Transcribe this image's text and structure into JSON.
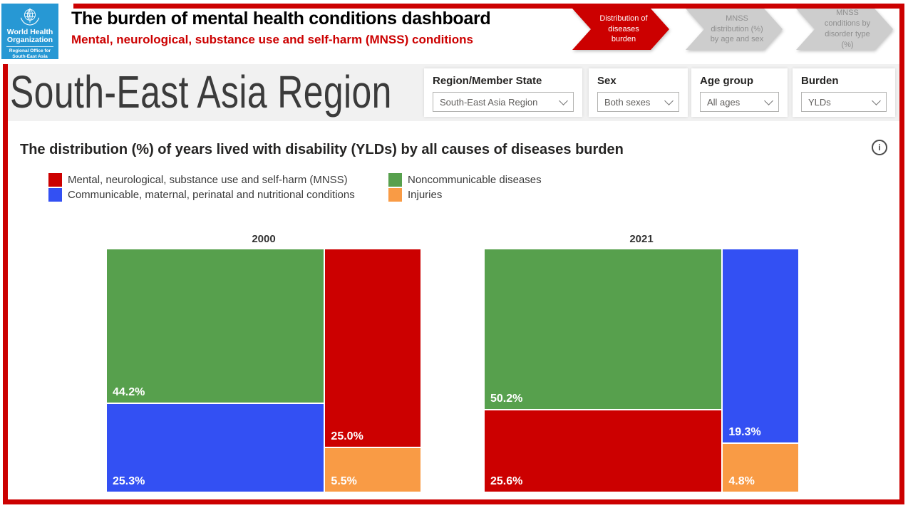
{
  "header": {
    "logo": {
      "org_line1": "World Health",
      "org_line2": "Organization",
      "office_line1": "Regional Office for",
      "office_line2": "South-East Asia"
    },
    "title": "The burden of mental health conditions dashboard",
    "subtitle": "Mental, neurological, substance use and self-harm (MNSS) conditions",
    "nav": [
      {
        "label": "Distribution of diseases burden",
        "active": true
      },
      {
        "label": "MNSS distribution (%) by age and sex",
        "active": false
      },
      {
        "label": "MNSS conditions by disorder type (%)",
        "active": false
      }
    ]
  },
  "filters": {
    "region_title": "South-East Asia Region",
    "items": [
      {
        "label": "Region/Member State",
        "value": "South-East Asia Region"
      },
      {
        "label": "Sex",
        "value": "Both sexes"
      },
      {
        "label": "Age group",
        "value": "All ages"
      },
      {
        "label": "Burden",
        "value": "YLDs"
      }
    ]
  },
  "main": {
    "chart_title": "The distribution (%) of years lived with disability (YLDs) by all causes of diseases burden",
    "info_icon_glyph": "i"
  },
  "colors": {
    "mnss": "#cc0000",
    "communicable": "#3350f3",
    "noncommunicable": "#57a04d",
    "injuries": "#f99b45",
    "accent_red": "#cc0000",
    "logo_blue": "#2798d4",
    "nav_inactive": "#cdcdcd"
  },
  "legend": [
    {
      "key": "mnss",
      "label": "Mental, neurological, substance use and self-harm (MNSS)"
    },
    {
      "key": "noncommunicable",
      "label": "Noncommunicable diseases"
    },
    {
      "key": "communicable",
      "label": "Communicable, maternal, perinatal and nutritional conditions"
    },
    {
      "key": "injuries",
      "label": "Injuries"
    }
  ],
  "chart_data": {
    "type": "treemap",
    "title": "The distribution (%) of years lived with disability (YLDs) by all causes of diseases burden",
    "unit": "%",
    "categories": {
      "mnss": "Mental, neurological, substance use and self-harm (MNSS)",
      "communicable": "Communicable, maternal, perinatal and nutritional conditions",
      "noncommunicable": "Noncommunicable diseases",
      "injuries": "Injuries"
    },
    "groups": [
      {
        "year": "2000",
        "values": {
          "mnss": 25.0,
          "communicable": 25.3,
          "noncommunicable": 44.2,
          "injuries": 5.5
        },
        "columns": [
          [
            {
              "key": "noncommunicable",
              "value": 44.2
            },
            {
              "key": "communicable",
              "value": 25.3
            }
          ],
          [
            {
              "key": "mnss",
              "value": 25.0
            },
            {
              "key": "injuries",
              "value": 5.5
            }
          ]
        ]
      },
      {
        "year": "2021",
        "values": {
          "mnss": 25.6,
          "communicable": 19.3,
          "noncommunicable": 50.2,
          "injuries": 4.8
        },
        "columns": [
          [
            {
              "key": "noncommunicable",
              "value": 50.2
            },
            {
              "key": "mnss",
              "value": 25.6
            }
          ],
          [
            {
              "key": "communicable",
              "value": 19.3
            },
            {
              "key": "injuries",
              "value": 4.8
            }
          ]
        ]
      }
    ]
  }
}
